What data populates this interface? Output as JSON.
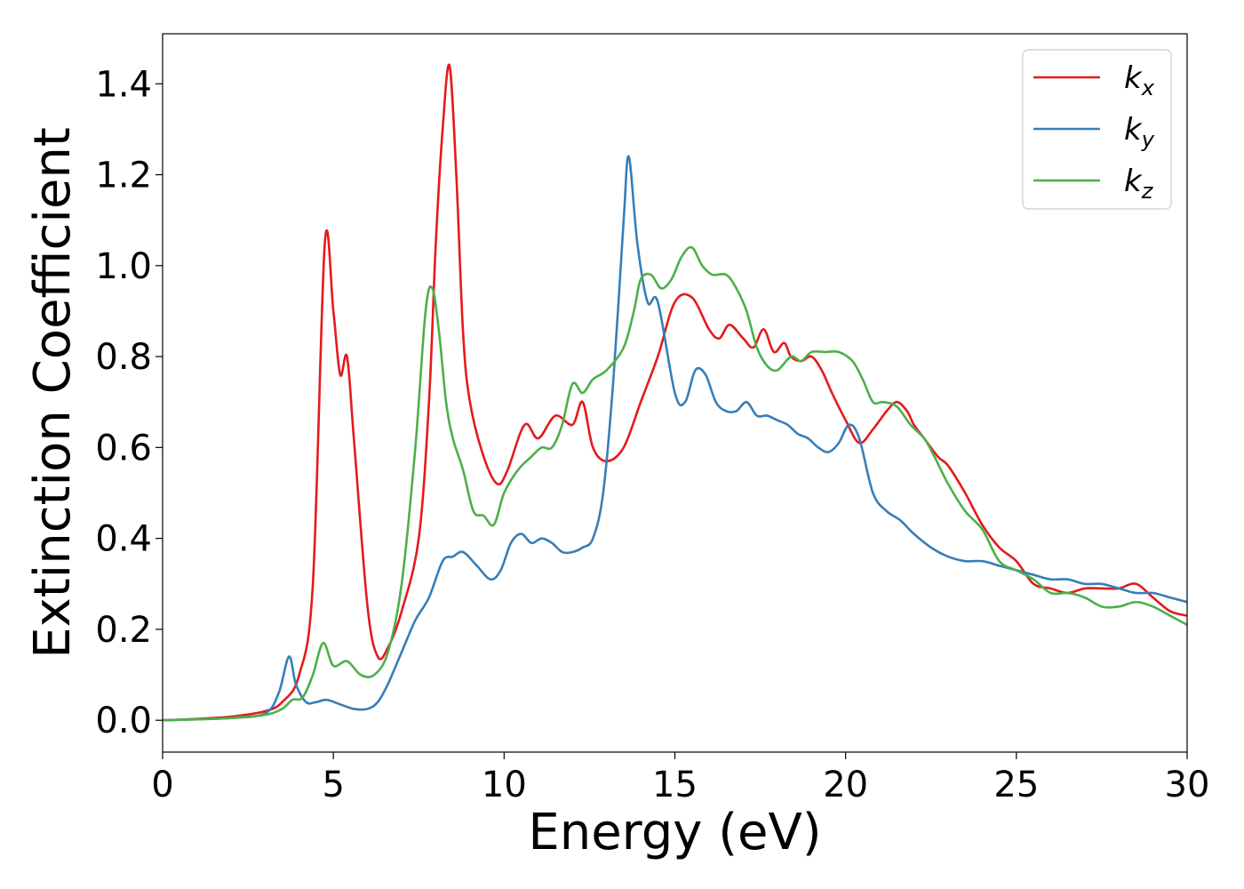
{
  "chart_data": {
    "type": "line",
    "xlabel": "Energy (eV)",
    "ylabel": "Extinction Coefficient",
    "xlim": [
      0,
      30
    ],
    "ylim": [
      -0.07,
      1.51
    ],
    "xticks": [
      0,
      5,
      10,
      15,
      20,
      25,
      30
    ],
    "yticks": [
      0.0,
      0.2,
      0.4,
      0.6,
      0.8,
      1.0,
      1.2,
      1.4
    ],
    "xtick_labels": [
      "0",
      "5",
      "10",
      "15",
      "20",
      "25",
      "30"
    ],
    "ytick_labels": [
      "0.0",
      "0.2",
      "0.4",
      "0.6",
      "0.8",
      "1.0",
      "1.2",
      "1.4"
    ],
    "grid": false,
    "legend_position": "top-right",
    "series": [
      {
        "name": "k_x",
        "legend_base": "k",
        "legend_sub": "x",
        "color": "#e41a1c",
        "x": [
          0,
          1,
          2,
          3,
          3.5,
          4,
          4.4,
          4.75,
          5.0,
          5.2,
          5.4,
          5.6,
          6.0,
          6.3,
          6.6,
          7.0,
          7.5,
          7.8,
          8.0,
          8.2,
          8.4,
          8.6,
          8.8,
          9.0,
          9.4,
          9.8,
          10.1,
          10.6,
          11.0,
          11.5,
          12.0,
          12.3,
          12.6,
          13.0,
          13.5,
          14.0,
          14.5,
          15.0,
          15.5,
          16.0,
          16.3,
          16.6,
          17.0,
          17.3,
          17.6,
          17.9,
          18.2,
          18.4,
          18.7,
          19.0,
          19.3,
          19.6,
          20.0,
          20.4,
          20.8,
          21.2,
          21.5,
          21.8,
          22.0,
          22.3,
          22.7,
          23.0,
          23.5,
          24.0,
          24.5,
          25.0,
          25.5,
          26.0,
          26.5,
          27.0,
          27.5,
          28.0,
          28.5,
          29.0,
          29.5,
          30.0
        ],
        "values": [
          0.0,
          0.003,
          0.008,
          0.02,
          0.04,
          0.1,
          0.3,
          1.05,
          0.9,
          0.76,
          0.8,
          0.62,
          0.25,
          0.14,
          0.16,
          0.24,
          0.4,
          0.7,
          1.05,
          1.3,
          1.44,
          1.2,
          0.85,
          0.7,
          0.58,
          0.52,
          0.55,
          0.65,
          0.62,
          0.67,
          0.65,
          0.7,
          0.6,
          0.57,
          0.6,
          0.7,
          0.8,
          0.92,
          0.93,
          0.86,
          0.84,
          0.87,
          0.84,
          0.82,
          0.86,
          0.81,
          0.83,
          0.8,
          0.79,
          0.8,
          0.77,
          0.72,
          0.66,
          0.61,
          0.64,
          0.68,
          0.7,
          0.68,
          0.65,
          0.62,
          0.58,
          0.56,
          0.5,
          0.43,
          0.38,
          0.35,
          0.3,
          0.29,
          0.28,
          0.29,
          0.29,
          0.29,
          0.3,
          0.27,
          0.24,
          0.23
        ]
      },
      {
        "name": "k_y",
        "legend_base": "k",
        "legend_sub": "y",
        "color": "#377eb8",
        "x": [
          0,
          1,
          2,
          3,
          3.4,
          3.7,
          3.9,
          4.2,
          4.5,
          4.8,
          5.2,
          5.6,
          6.0,
          6.3,
          6.6,
          7.0,
          7.4,
          7.8,
          8.2,
          8.5,
          8.8,
          9.2,
          9.6,
          9.9,
          10.2,
          10.5,
          10.8,
          11.1,
          11.4,
          11.7,
          12.0,
          12.3,
          12.6,
          12.9,
          13.2,
          13.5,
          13.65,
          13.9,
          14.2,
          14.5,
          15.0,
          15.3,
          15.6,
          15.9,
          16.2,
          16.5,
          16.8,
          17.1,
          17.4,
          17.7,
          18.0,
          18.3,
          18.6,
          18.9,
          19.2,
          19.5,
          19.8,
          20.1,
          20.4,
          20.8,
          21.2,
          21.6,
          22.0,
          22.5,
          23.0,
          23.5,
          24.0,
          24.5,
          25.0,
          25.5,
          26.0,
          26.5,
          27.0,
          27.5,
          28.0,
          28.5,
          29.0,
          29.5,
          30.0
        ],
        "values": [
          0.0,
          0.002,
          0.005,
          0.015,
          0.06,
          0.14,
          0.08,
          0.04,
          0.04,
          0.045,
          0.035,
          0.025,
          0.025,
          0.04,
          0.08,
          0.15,
          0.22,
          0.27,
          0.35,
          0.36,
          0.37,
          0.34,
          0.31,
          0.33,
          0.39,
          0.41,
          0.39,
          0.4,
          0.39,
          0.37,
          0.37,
          0.38,
          0.4,
          0.5,
          0.75,
          1.1,
          1.24,
          1.05,
          0.92,
          0.92,
          0.72,
          0.7,
          0.77,
          0.76,
          0.7,
          0.68,
          0.68,
          0.7,
          0.67,
          0.67,
          0.66,
          0.65,
          0.63,
          0.62,
          0.6,
          0.59,
          0.61,
          0.65,
          0.62,
          0.5,
          0.46,
          0.44,
          0.41,
          0.38,
          0.36,
          0.35,
          0.35,
          0.34,
          0.33,
          0.32,
          0.31,
          0.31,
          0.3,
          0.3,
          0.29,
          0.28,
          0.28,
          0.27,
          0.26
        ]
      },
      {
        "name": "k_z",
        "legend_base": "k",
        "legend_sub": "z",
        "color": "#4daf4a",
        "x": [
          0,
          1,
          2,
          3,
          3.5,
          3.8,
          4.1,
          4.4,
          4.7,
          5.0,
          5.4,
          5.8,
          6.2,
          6.6,
          7.0,
          7.4,
          7.7,
          7.9,
          8.1,
          8.3,
          8.5,
          8.8,
          9.1,
          9.4,
          9.7,
          10.0,
          10.4,
          10.8,
          11.1,
          11.4,
          11.7,
          12.0,
          12.3,
          12.6,
          13.0,
          13.5,
          13.8,
          14.0,
          14.3,
          14.6,
          14.9,
          15.2,
          15.5,
          15.8,
          16.1,
          16.5,
          16.8,
          17.1,
          17.4,
          17.7,
          18.0,
          18.4,
          18.7,
          19.0,
          19.4,
          19.8,
          20.2,
          20.5,
          20.8,
          21.1,
          21.5,
          21.9,
          22.3,
          22.6,
          23.0,
          23.5,
          24.0,
          24.5,
          25.0,
          25.5,
          26.0,
          26.5,
          27.0,
          27.5,
          28.0,
          28.5,
          29.0,
          29.5,
          30.0
        ],
        "values": [
          0.0,
          0.002,
          0.005,
          0.012,
          0.025,
          0.045,
          0.05,
          0.1,
          0.17,
          0.12,
          0.13,
          0.1,
          0.1,
          0.15,
          0.3,
          0.6,
          0.9,
          0.95,
          0.85,
          0.7,
          0.62,
          0.55,
          0.46,
          0.45,
          0.43,
          0.5,
          0.55,
          0.58,
          0.6,
          0.6,
          0.65,
          0.74,
          0.72,
          0.75,
          0.77,
          0.82,
          0.9,
          0.97,
          0.98,
          0.95,
          0.97,
          1.02,
          1.04,
          1.0,
          0.98,
          0.98,
          0.95,
          0.9,
          0.82,
          0.78,
          0.77,
          0.8,
          0.79,
          0.81,
          0.81,
          0.81,
          0.79,
          0.75,
          0.7,
          0.7,
          0.69,
          0.65,
          0.62,
          0.58,
          0.52,
          0.46,
          0.42,
          0.35,
          0.33,
          0.31,
          0.28,
          0.28,
          0.27,
          0.25,
          0.25,
          0.26,
          0.25,
          0.23,
          0.21
        ]
      }
    ]
  }
}
